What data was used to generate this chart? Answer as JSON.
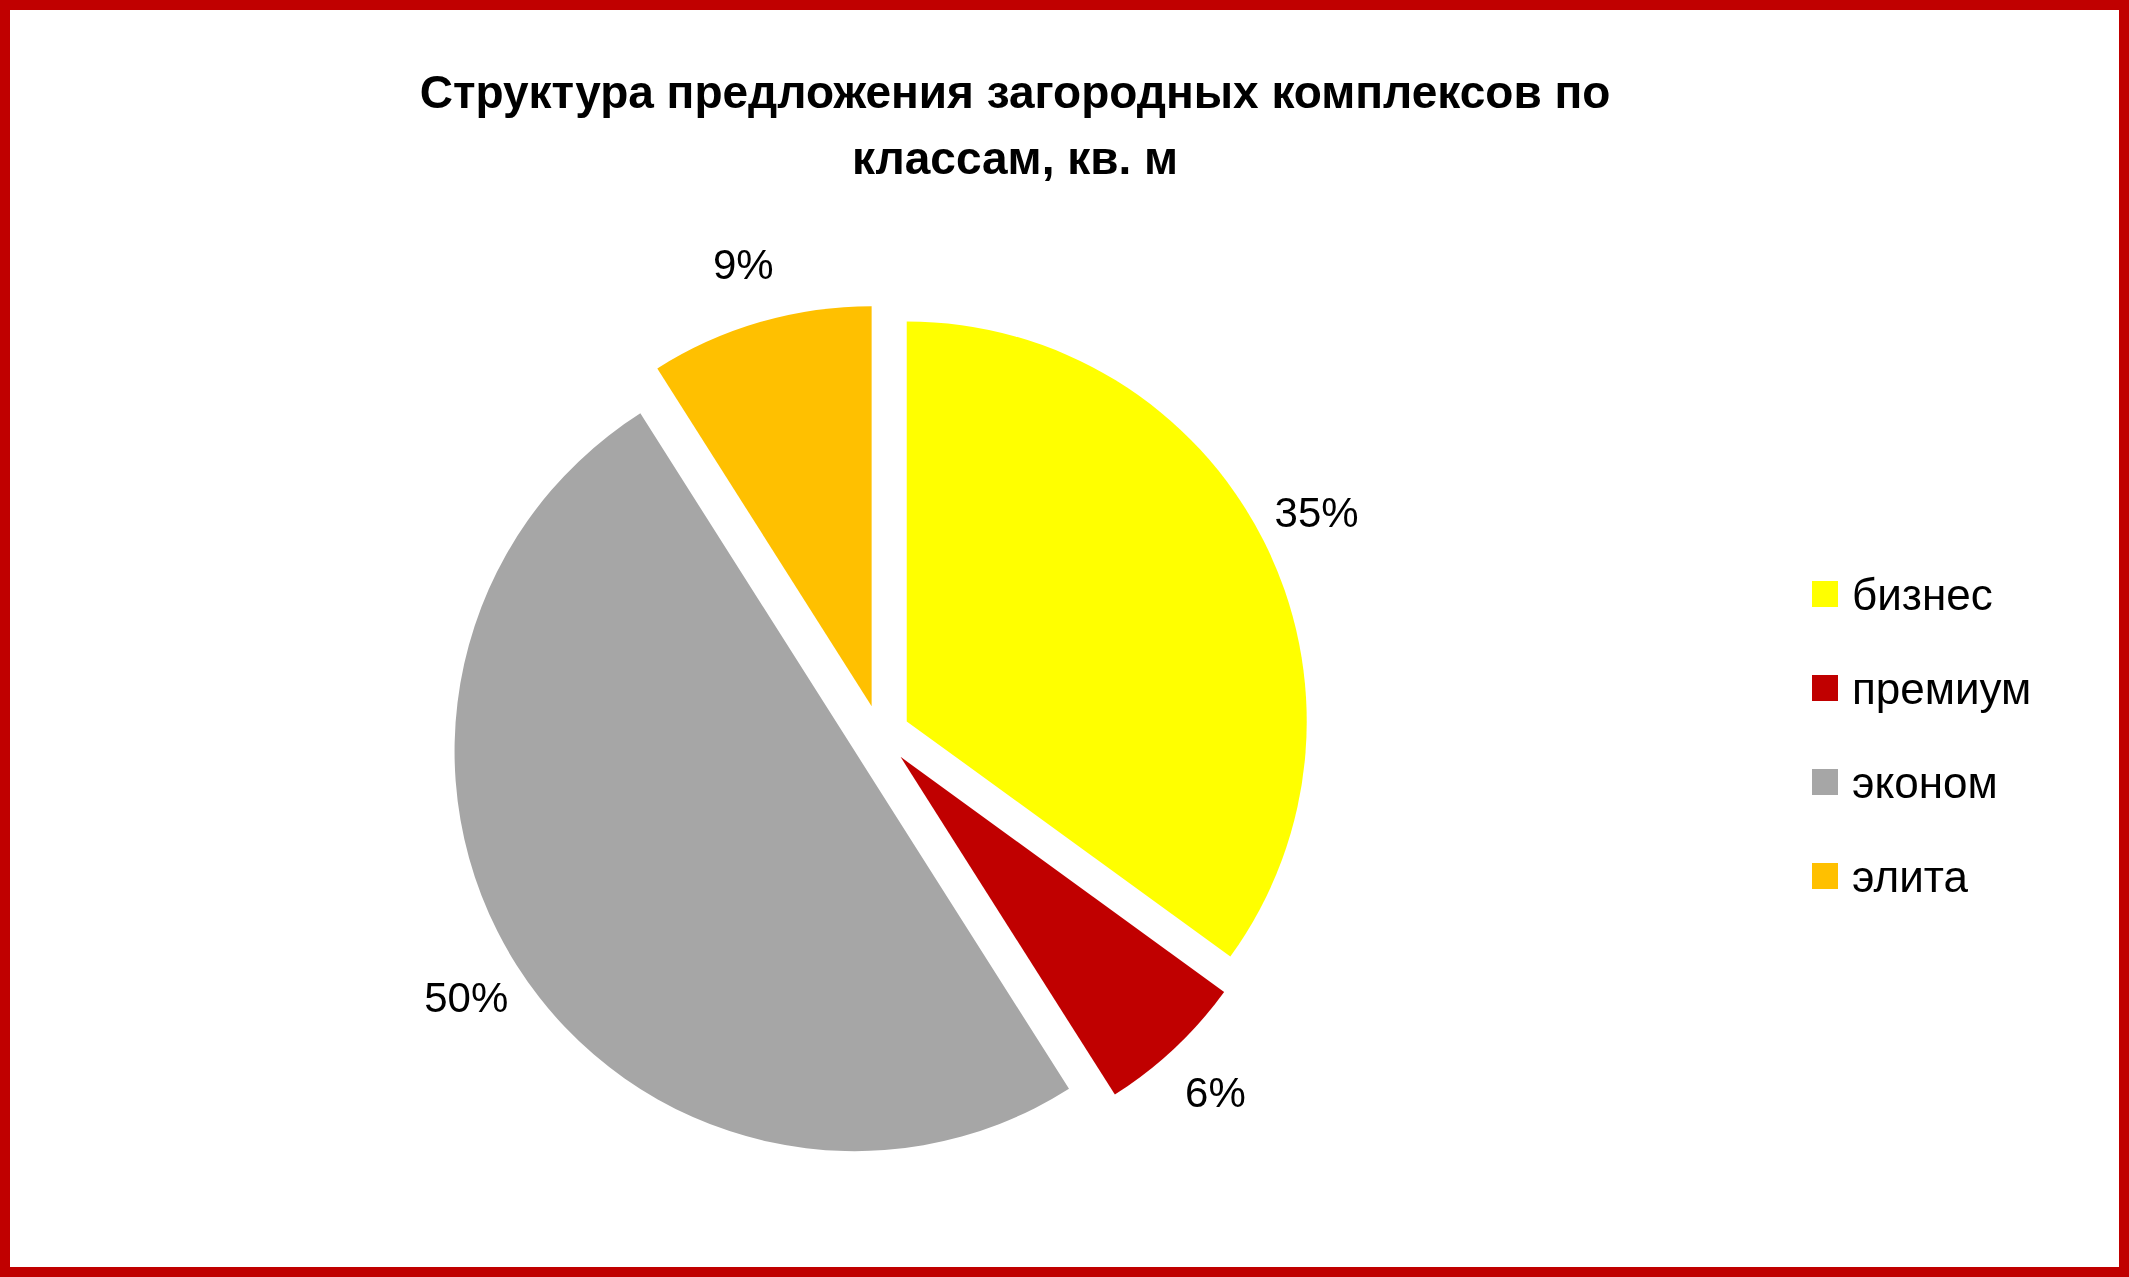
{
  "chart_data": {
    "type": "pie",
    "title": "Структура предложения загородных комплексов по классам, кв. м",
    "categories": [
      "бизнес",
      "премиум",
      "эконом",
      "элита"
    ],
    "values": [
      35,
      6,
      50,
      9
    ],
    "colors": [
      "#ffff00",
      "#c00000",
      "#a6a6a6",
      "#ffc000"
    ],
    "value_labels": [
      "35%",
      "6%",
      "50%",
      "9%"
    ],
    "legend": "right"
  }
}
